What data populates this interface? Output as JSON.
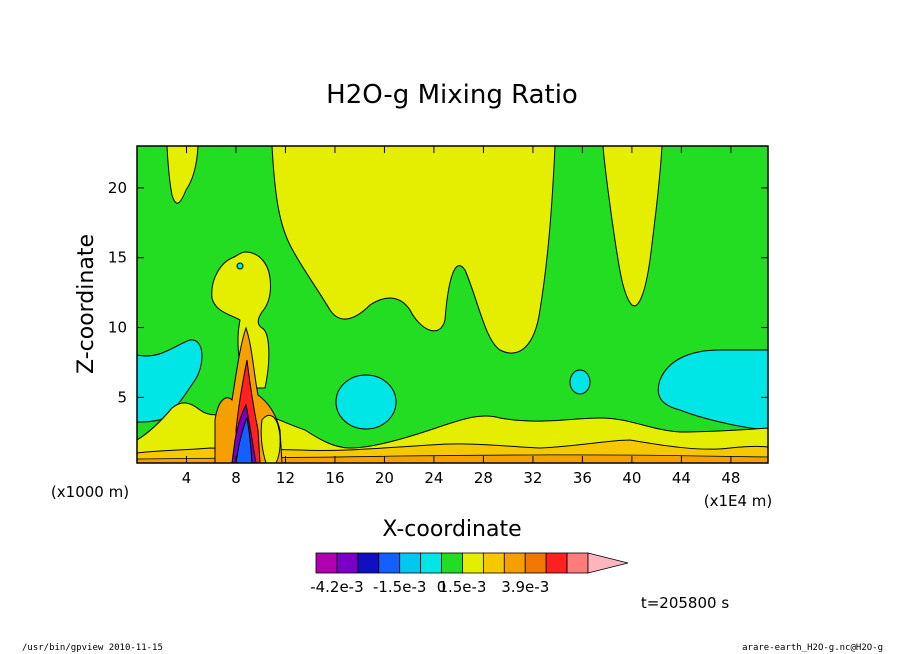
{
  "chart_data": {
    "type": "heatmap",
    "title": "H2O-g Mixing Ratio",
    "xlabel": "X-coordinate",
    "ylabel": "Z-coordinate",
    "x_unit": "(x1E4 m)",
    "y_unit": "(x1000 m)",
    "xlim": [
      0,
      51
    ],
    "ylim": [
      0.3,
      23
    ],
    "x_ticks": [
      4,
      8,
      12,
      16,
      20,
      24,
      28,
      32,
      36,
      40,
      44,
      48
    ],
    "y_ticks": [
      5,
      10,
      15,
      20
    ],
    "colorbar": {
      "colors": [
        "#b000b0",
        "#7a00c8",
        "#1010c0",
        "#1460ff",
        "#00c8f0",
        "#00e6e6",
        "#22dd22",
        "#e6ee00",
        "#f5c800",
        "#f5a000",
        "#f07800",
        "#ff2020",
        "#ff7c7c",
        "#ffb4c0"
      ],
      "tick_labels": [
        "-4.2e-3",
        "-1.5e-3",
        "0",
        "1.5e-3",
        "3.9e-3"
      ]
    },
    "time_label": "t=205800 s"
  },
  "footer": {
    "left": "/usr/bin/gpview   2010-11-15",
    "right": "arare-earth_H2O-g.nc@H2O-g"
  }
}
